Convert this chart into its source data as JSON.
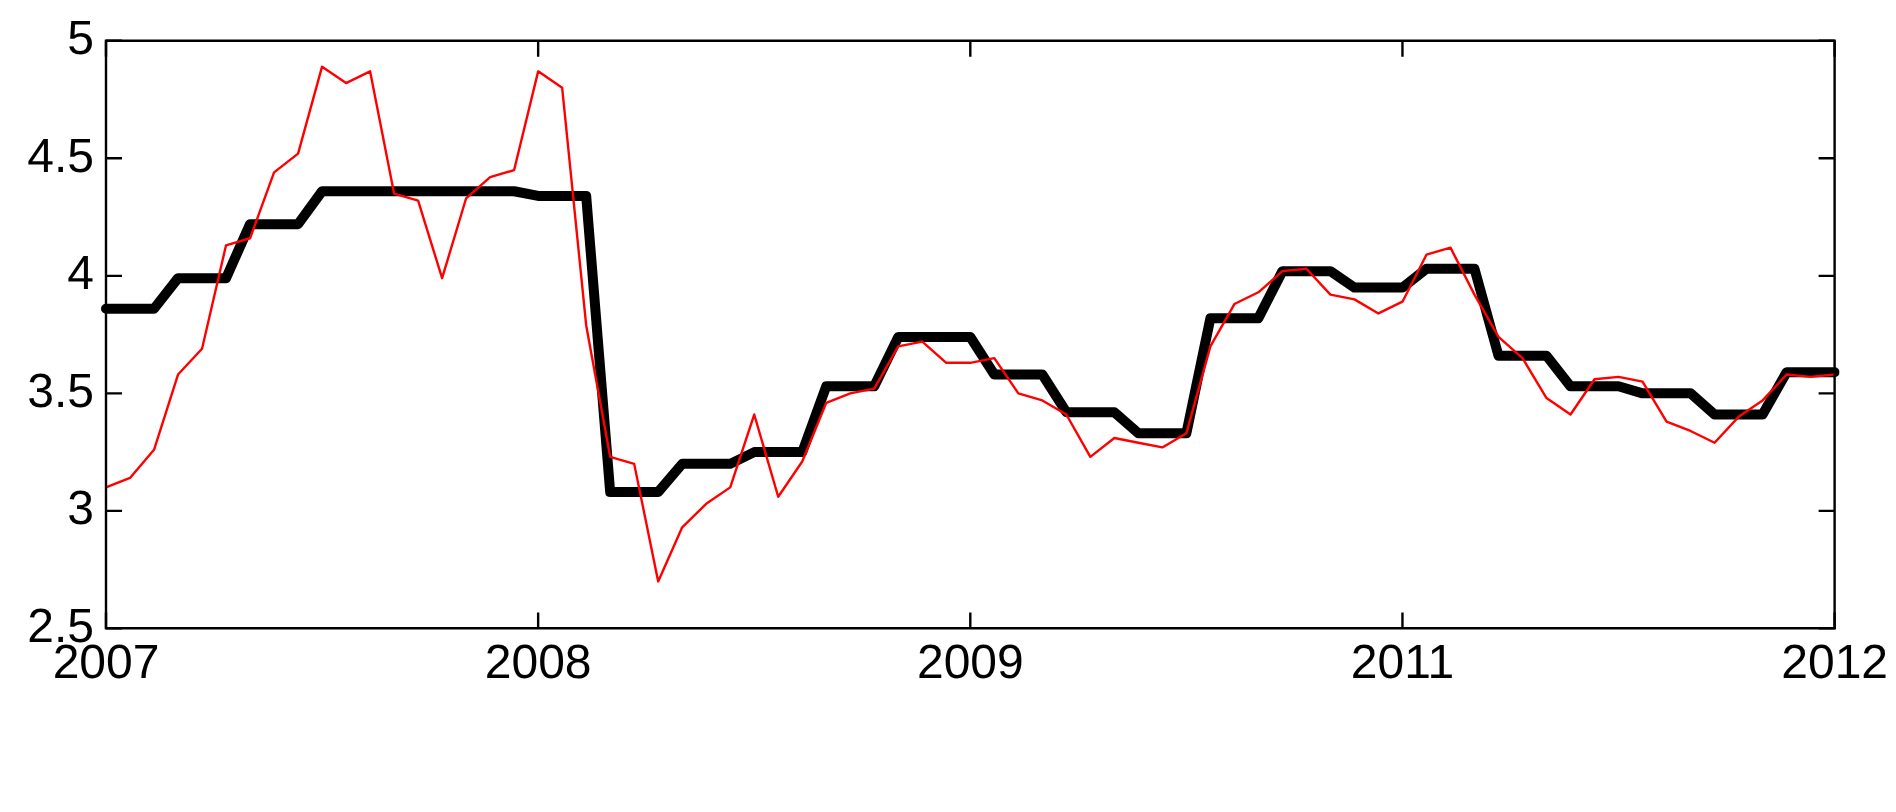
{
  "chart_data": {
    "type": "line",
    "categories": [
      "2007",
      null,
      null,
      null,
      null,
      null,
      null,
      null,
      null,
      null,
      null,
      null,
      null,
      null,
      null,
      null,
      null,
      null,
      "2008",
      null,
      null,
      null,
      null,
      null,
      null,
      null,
      null,
      null,
      null,
      null,
      null,
      null,
      null,
      null,
      null,
      null,
      "2009",
      null,
      null,
      null,
      null,
      null,
      null,
      null,
      null,
      null,
      null,
      null,
      null,
      null,
      null,
      null,
      null,
      null,
      "2011",
      null,
      null,
      null,
      null,
      null,
      null,
      null,
      null,
      null,
      null,
      null,
      null,
      null,
      null,
      null,
      null,
      null,
      "2012"
    ],
    "series": [
      {
        "color": "#ff0000",
        "values": [
          3.1,
          3.14,
          3.26,
          3.58,
          3.69,
          4.13,
          4.16,
          4.44,
          4.52,
          4.89,
          4.82,
          4.87,
          4.35,
          4.32,
          3.99,
          4.33,
          4.42,
          4.45,
          4.87,
          4.8,
          3.79,
          3.23,
          3.2,
          2.7,
          2.93,
          3.03,
          3.1,
          3.41,
          3.06,
          3.21,
          3.46,
          3.5,
          3.52,
          3.7,
          3.72,
          3.63,
          3.63,
          3.65,
          3.5,
          3.47,
          3.41,
          3.23,
          3.31,
          3.29,
          3.27,
          3.33,
          3.7,
          3.88,
          3.93,
          4.02,
          4.03,
          3.92,
          3.9,
          3.84,
          3.89,
          4.09,
          4.12,
          3.92,
          3.74,
          3.65,
          3.48,
          3.41,
          3.56,
          3.57,
          3.55,
          3.38,
          3.34,
          3.29,
          3.4,
          3.47,
          3.58,
          3.57,
          3.58
        ]
      },
      {
        "color": "#000000",
        "values": [
          3.86,
          3.86,
          3.86,
          3.99,
          3.99,
          3.99,
          4.22,
          4.22,
          4.22,
          4.36,
          4.36,
          4.36,
          4.36,
          4.36,
          4.36,
          4.36,
          4.36,
          4.36,
          4.34,
          4.34,
          4.34,
          3.08,
          3.08,
          3.08,
          3.2,
          3.2,
          3.2,
          3.25,
          3.25,
          3.25,
          3.53,
          3.53,
          3.53,
          3.74,
          3.74,
          3.74,
          3.74,
          3.58,
          3.58,
          3.58,
          3.42,
          3.42,
          3.42,
          3.33,
          3.33,
          3.33,
          3.82,
          3.82,
          3.82,
          4.02,
          4.02,
          4.02,
          3.95,
          3.95,
          3.95,
          4.03,
          4.03,
          4.03,
          3.66,
          3.66,
          3.66,
          3.53,
          3.53,
          3.53,
          3.5,
          3.5,
          3.5,
          3.41,
          3.41,
          3.41,
          3.59,
          3.59,
          3.59
        ]
      }
    ],
    "ylim": [
      2.5,
      5
    ],
    "yticks": [
      2.5,
      3,
      3.5,
      4,
      4.5,
      5
    ],
    "grid": false,
    "marker": "none",
    "line_style": "solid"
  }
}
